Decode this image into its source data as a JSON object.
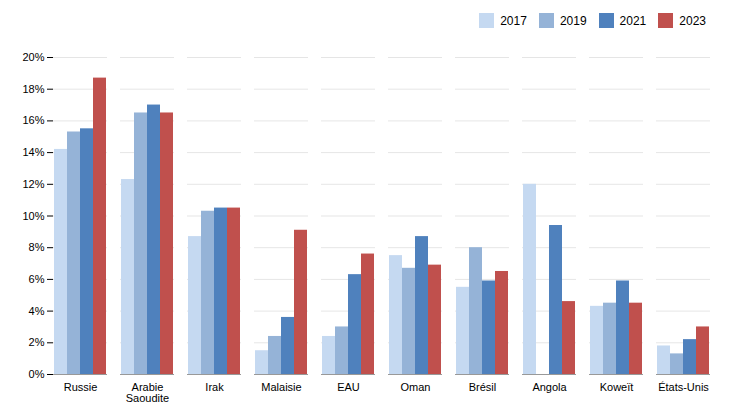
{
  "chart_data": {
    "type": "bar",
    "categories": [
      "Russie",
      "Arabie\nSaoudite",
      "Irak",
      "Malaisie",
      "EAU",
      "Oman",
      "Brésil",
      "Angola",
      "Koweït",
      "États-Unis"
    ],
    "series": [
      {
        "name": "2017",
        "color": "#c5d9f1",
        "values": [
          0.142,
          0.123,
          0.087,
          0.015,
          0.024,
          0.075,
          0.055,
          0.12,
          0.043,
          0.018
        ]
      },
      {
        "name": "2019",
        "color": "#95b3d7",
        "values": [
          0.153,
          0.165,
          0.103,
          0.024,
          0.03,
          0.067,
          0.08,
          0.0,
          0.045,
          0.013
        ]
      },
      {
        "name": "2021",
        "color": "#4f81bd",
        "values": [
          0.155,
          0.17,
          0.105,
          0.036,
          0.063,
          0.087,
          0.059,
          0.094,
          0.059,
          0.022
        ]
      },
      {
        "name": "2023",
        "color": "#c0504d",
        "values": [
          0.187,
          0.165,
          0.105,
          0.091,
          0.076,
          0.069,
          0.065,
          0.046,
          0.045,
          0.03
        ]
      }
    ],
    "ylim": [
      0,
      0.2
    ],
    "yticks": [
      {
        "value": 0,
        "label": "0%"
      },
      {
        "value": 0.02,
        "label": "2%"
      },
      {
        "value": 0.04,
        "label": "4%"
      },
      {
        "value": 0.06,
        "label": "6%"
      },
      {
        "value": 0.08,
        "label": "8%"
      },
      {
        "value": 0.1,
        "label": "10%"
      },
      {
        "value": 0.12,
        "label": "12%"
      },
      {
        "value": 0.14,
        "label": "14%"
      },
      {
        "value": 0.16,
        "label": "16%"
      },
      {
        "value": 0.18,
        "label": "18%"
      },
      {
        "value": 0.2,
        "label": "20%"
      }
    ],
    "grid": true,
    "legend": "upper right"
  }
}
